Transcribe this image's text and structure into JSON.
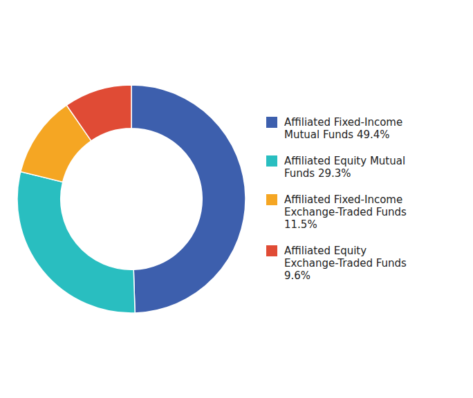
{
  "chart_data": {
    "type": "donut",
    "categories": [
      "Affiliated Fixed-Income\nMutual Funds 49.4%",
      "Affiliated Equity Mutual\nFunds 29.3%",
      "Affiliated Fixed-Income\nExchange-Traded Funds\n11.5%",
      "Affiliated Equity\nExchange-Traded Funds\n9.6%"
    ],
    "values": [
      49.4,
      29.3,
      11.5,
      9.6
    ],
    "colors": [
      "#3d5fad",
      "#29bec0",
      "#f5a623",
      "#e04b35"
    ],
    "legend": "right"
  }
}
